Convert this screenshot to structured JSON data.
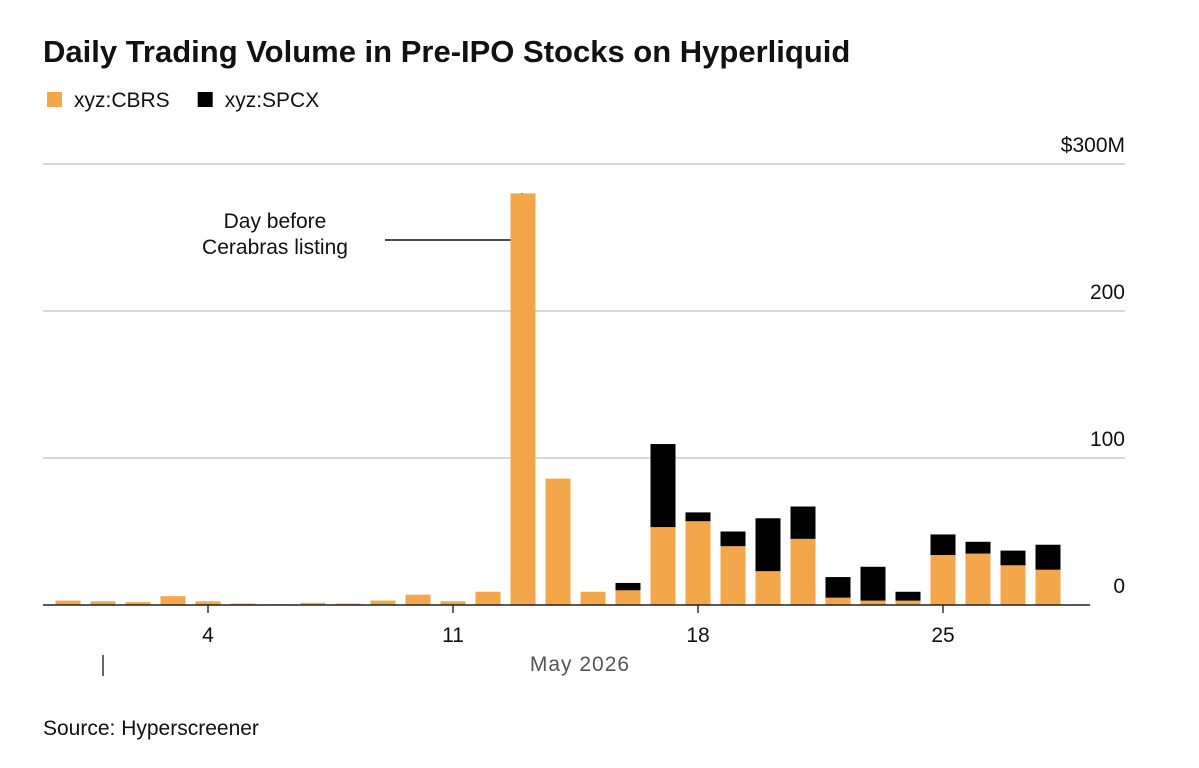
{
  "chart_data": {
    "type": "stacked_bar",
    "title": "Daily Trading Volume in Pre-IPO Stocks on Hyperliquid",
    "x_label": "May 2026",
    "source": "Source: Hyperscreener",
    "annotation": [
      "Day before",
      "Cerabras listing"
    ],
    "categories": [
      null,
      null,
      null,
      null,
      "4",
      null,
      null,
      null,
      null,
      null,
      null,
      "11",
      null,
      null,
      null,
      null,
      null,
      null,
      "18",
      null,
      null,
      null,
      null,
      null,
      null,
      "25",
      null,
      null,
      null
    ],
    "series": [
      {
        "name": "xyz:CBRS",
        "color": "#f4a74a",
        "values": [
          3,
          2.5,
          2,
          6,
          2.5,
          1,
          0.5,
          1.5,
          1,
          3,
          7,
          2.5,
          9,
          280,
          86,
          9,
          10,
          53,
          57,
          40,
          23,
          45,
          5,
          3,
          3,
          34,
          35,
          27,
          24
        ]
      },
      {
        "name": "xyz:SPCX",
        "color": "#000000",
        "values": [
          null,
          null,
          null,
          null,
          null,
          null,
          null,
          null,
          null,
          null,
          null,
          null,
          null,
          null,
          null,
          null,
          5,
          56.5,
          6,
          10,
          36,
          22,
          14,
          23,
          6,
          14,
          8,
          10,
          17
        ]
      }
    ],
    "ylim": [
      0,
      300
    ],
    "yticks": [
      0,
      100,
      200,
      {
        "value": 300,
        "label": "$300M"
      }
    ],
    "grid": true
  }
}
